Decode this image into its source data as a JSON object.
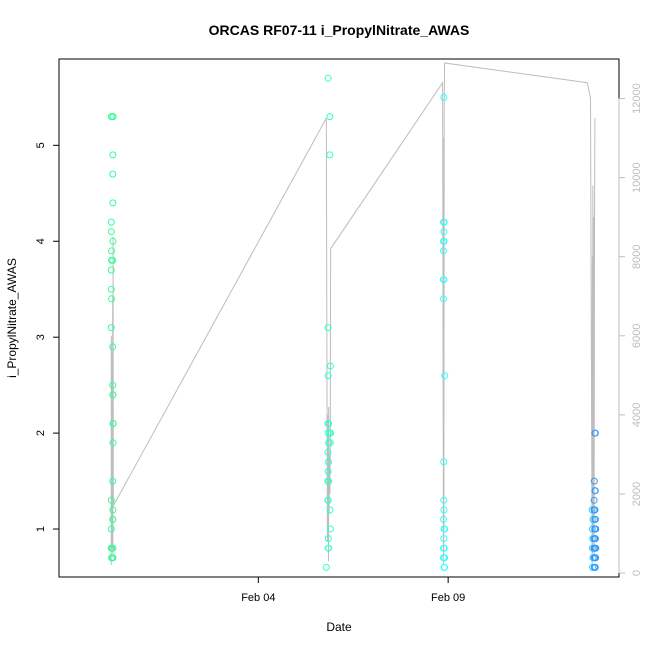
{
  "chart_data": {
    "type": "scatter",
    "title": "ORCAS RF07-11 i_PropylNitrate_AWAS",
    "xlabel": "Date",
    "ylabel": "i_PropylNitrate_AWAS",
    "x_ticks": [
      {
        "date": "2016-02-04",
        "label": "Feb 04"
      },
      {
        "date": "2016-02-09",
        "label": "Feb 09"
      }
    ],
    "y_ticks": [
      1,
      2,
      3,
      4,
      5
    ],
    "y2_ticks": [
      0,
      2000,
      4000,
      6000,
      8000,
      10000,
      12000
    ],
    "xlim": [
      "2016-01-29T18:00",
      "2016-02-13T12:00"
    ],
    "ylim": [
      0.5,
      5.9
    ],
    "y2lim": [
      -100,
      13000
    ],
    "grid": false,
    "colors": {
      "RF07": "#33ff99",
      "RF08": "#33ffcc",
      "RF09": "#33ffff",
      "RF10": "#33ccff",
      "RF11": "#3399ff",
      "altitude_line": "#bdbdbd"
    },
    "series": [
      {
        "flight": "RF07",
        "points": [
          {
            "x": "2016-01-31T03:05",
            "y": 5.3
          },
          {
            "x": "2016-01-31T03:05",
            "y": 4.2
          },
          {
            "x": "2016-01-31T03:05",
            "y": 4.1
          },
          {
            "x": "2016-01-31T03:10",
            "y": 3.9
          },
          {
            "x": "2016-01-31T03:10",
            "y": 3.8
          },
          {
            "x": "2016-01-31T03:00",
            "y": 3.7
          },
          {
            "x": "2016-01-31T03:05",
            "y": 3.5
          },
          {
            "x": "2016-01-31T03:10",
            "y": 3.4
          },
          {
            "x": "2016-01-31T03:05",
            "y": 3.1
          },
          {
            "x": "2016-01-31T03:05",
            "y": 1.3
          },
          {
            "x": "2016-01-31T03:05",
            "y": 1.0
          },
          {
            "x": "2016-01-31T03:00",
            "y": 0.8
          },
          {
            "x": "2016-01-31T03:20",
            "y": 0.8
          },
          {
            "x": "2016-01-31T03:15",
            "y": 0.7
          },
          {
            "x": "2016-01-31T03:20",
            "y": 0.7
          },
          {
            "x": "2016-01-31T04:00",
            "y": 5.3
          },
          {
            "x": "2016-01-31T04:10",
            "y": 5.3
          },
          {
            "x": "2016-01-31T04:00",
            "y": 4.9
          },
          {
            "x": "2016-01-31T04:00",
            "y": 4.7
          },
          {
            "x": "2016-01-31T04:00",
            "y": 4.4
          },
          {
            "x": "2016-01-31T04:10",
            "y": 4.0
          },
          {
            "x": "2016-01-31T04:00",
            "y": 3.8
          },
          {
            "x": "2016-01-31T03:55",
            "y": 2.9
          },
          {
            "x": "2016-01-31T03:55",
            "y": 2.5
          },
          {
            "x": "2016-01-31T04:05",
            "y": 2.4
          },
          {
            "x": "2016-01-31T04:00",
            "y": 2.4
          },
          {
            "x": "2016-01-31T04:10",
            "y": 2.1
          },
          {
            "x": "2016-01-31T04:15",
            "y": 2.1
          },
          {
            "x": "2016-01-31T04:10",
            "y": 1.9
          },
          {
            "x": "2016-01-31T03:55",
            "y": 1.5
          },
          {
            "x": "2016-01-31T04:05",
            "y": 1.2
          },
          {
            "x": "2016-01-31T03:55",
            "y": 1.1
          },
          {
            "x": "2016-01-31T04:00",
            "y": 1.1
          },
          {
            "x": "2016-01-31T04:05",
            "y": 0.8
          },
          {
            "x": "2016-01-31T03:55",
            "y": 0.7
          },
          {
            "x": "2016-01-31T04:10",
            "y": 0.7
          }
        ]
      },
      {
        "flight": "RF08",
        "points": [
          {
            "x": "2016-02-05T19:00",
            "y": 0.6
          },
          {
            "x": "2016-02-05T20:05",
            "y": 5.7
          },
          {
            "x": "2016-02-05T21:10",
            "y": 5.3
          },
          {
            "x": "2016-02-05T21:10",
            "y": 4.9
          },
          {
            "x": "2016-02-05T20:05",
            "y": 3.1
          },
          {
            "x": "2016-02-05T20:10",
            "y": 2.6
          },
          {
            "x": "2016-02-05T21:35",
            "y": 2.7
          },
          {
            "x": "2016-02-05T20:00",
            "y": 2.1
          },
          {
            "x": "2016-02-05T20:25",
            "y": 2.1
          },
          {
            "x": "2016-02-05T20:10",
            "y": 2.0
          },
          {
            "x": "2016-02-05T21:10",
            "y": 2.0
          },
          {
            "x": "2016-02-05T21:40",
            "y": 2.0
          },
          {
            "x": "2016-02-05T20:30",
            "y": 1.9
          },
          {
            "x": "2016-02-05T21:25",
            "y": 1.9
          },
          {
            "x": "2016-02-05T20:00",
            "y": 1.8
          },
          {
            "x": "2016-02-05T20:20",
            "y": 1.7
          },
          {
            "x": "2016-02-05T20:05",
            "y": 1.6
          },
          {
            "x": "2016-02-05T20:00",
            "y": 1.5
          },
          {
            "x": "2016-02-05T20:25",
            "y": 1.5
          },
          {
            "x": "2016-02-05T19:55",
            "y": 1.3
          },
          {
            "x": "2016-02-05T20:10",
            "y": 1.3
          },
          {
            "x": "2016-02-05T21:20",
            "y": 1.2
          },
          {
            "x": "2016-02-05T21:30",
            "y": 1.0
          },
          {
            "x": "2016-02-05T20:15",
            "y": 0.9
          },
          {
            "x": "2016-02-05T20:10",
            "y": 0.8
          },
          {
            "x": "2016-02-05T20:30",
            "y": 0.8
          }
        ]
      },
      {
        "flight": "RF09",
        "points": [
          {
            "x": "2016-02-08T21:15",
            "y": 5.5
          },
          {
            "x": "2016-02-08T21:05",
            "y": 4.2
          },
          {
            "x": "2016-02-08T21:25",
            "y": 4.2
          },
          {
            "x": "2016-02-08T21:20",
            "y": 4.1
          },
          {
            "x": "2016-02-08T21:00",
            "y": 4.0
          },
          {
            "x": "2016-02-08T21:25",
            "y": 4.0
          },
          {
            "x": "2016-02-08T21:05",
            "y": 3.9
          },
          {
            "x": "2016-02-08T21:00",
            "y": 3.6
          },
          {
            "x": "2016-02-08T21:20",
            "y": 3.6
          },
          {
            "x": "2016-02-08T21:05",
            "y": 3.4
          },
          {
            "x": "2016-02-08T21:50",
            "y": 2.6
          },
          {
            "x": "2016-02-08T21:10",
            "y": 1.7
          },
          {
            "x": "2016-02-08T21:10",
            "y": 1.3
          },
          {
            "x": "2016-02-08T21:20",
            "y": 1.2
          },
          {
            "x": "2016-02-08T21:05",
            "y": 1.1
          },
          {
            "x": "2016-02-08T21:25",
            "y": 1.0
          },
          {
            "x": "2016-02-08T21:50",
            "y": 1.0
          },
          {
            "x": "2016-02-08T21:15",
            "y": 0.9
          },
          {
            "x": "2016-02-08T21:05",
            "y": 0.8
          },
          {
            "x": "2016-02-08T21:30",
            "y": 0.8
          },
          {
            "x": "2016-02-08T21:00",
            "y": 0.7
          },
          {
            "x": "2016-02-08T21:15",
            "y": 0.7
          },
          {
            "x": "2016-02-08T21:30",
            "y": 0.7
          },
          {
            "x": "2016-02-08T21:45",
            "y": 0.7
          },
          {
            "x": "2016-02-08T21:25",
            "y": 0.6
          },
          {
            "x": "2016-02-08T21:40",
            "y": 0.6
          }
        ]
      },
      {
        "flight": "RF10",
        "points": [
          {
            "x": "2016-02-12T19:00",
            "y": 1.2
          },
          {
            "x": "2016-02-12T19:30",
            "y": 1.1
          },
          {
            "x": "2016-02-12T19:10",
            "y": 1.0
          },
          {
            "x": "2016-02-12T19:25",
            "y": 0.9
          },
          {
            "x": "2016-02-12T19:15",
            "y": 0.8
          },
          {
            "x": "2016-02-12T19:30",
            "y": 0.7
          },
          {
            "x": "2016-02-12T19:20",
            "y": 0.6
          }
        ]
      },
      {
        "flight": "RF11",
        "points": [
          {
            "x": "2016-02-12T20:45",
            "y": 2.0
          },
          {
            "x": "2016-02-12T21:00",
            "y": 2.0
          },
          {
            "x": "2016-02-12T20:25",
            "y": 1.5
          },
          {
            "x": "2016-02-12T20:45",
            "y": 1.4
          },
          {
            "x": "2016-02-12T21:00",
            "y": 1.4
          },
          {
            "x": "2016-02-12T20:15",
            "y": 1.3
          },
          {
            "x": "2016-02-12T20:10",
            "y": 1.2
          },
          {
            "x": "2016-02-12T20:30",
            "y": 1.2
          },
          {
            "x": "2016-02-12T20:50",
            "y": 1.2
          },
          {
            "x": "2016-02-12T20:40",
            "y": 1.1
          },
          {
            "x": "2016-02-12T21:10",
            "y": 1.1
          },
          {
            "x": "2016-02-12T20:35",
            "y": 1.0
          },
          {
            "x": "2016-02-12T21:00",
            "y": 1.0
          },
          {
            "x": "2016-02-12T21:15",
            "y": 1.0
          },
          {
            "x": "2016-02-12T20:20",
            "y": 0.9
          },
          {
            "x": "2016-02-12T20:50",
            "y": 0.9
          },
          {
            "x": "2016-02-12T21:05",
            "y": 0.9
          },
          {
            "x": "2016-02-12T20:10",
            "y": 0.8
          },
          {
            "x": "2016-02-12T20:30",
            "y": 0.8
          },
          {
            "x": "2016-02-12T20:45",
            "y": 0.8
          },
          {
            "x": "2016-02-12T21:00",
            "y": 0.8
          },
          {
            "x": "2016-02-12T21:20",
            "y": 0.8
          },
          {
            "x": "2016-02-12T20:20",
            "y": 0.7
          },
          {
            "x": "2016-02-12T20:40",
            "y": 0.7
          },
          {
            "x": "2016-02-12T20:55",
            "y": 0.7
          },
          {
            "x": "2016-02-12T21:15",
            "y": 0.7
          },
          {
            "x": "2016-02-12T20:25",
            "y": 0.6
          },
          {
            "x": "2016-02-12T20:45",
            "y": 0.6
          },
          {
            "x": "2016-02-12T21:00",
            "y": 0.6
          }
        ]
      }
    ],
    "altitude_line": [
      {
        "x": "2016-01-31T03:00",
        "y2": 200
      },
      {
        "x": "2016-01-31T03:05",
        "y2": 6000
      },
      {
        "x": "2016-01-31T03:15",
        "y2": 5500
      },
      {
        "x": "2016-01-31T03:25",
        "y2": 600
      },
      {
        "x": "2016-01-31T03:35",
        "y2": 4500
      },
      {
        "x": "2016-01-31T03:45",
        "y2": 1200
      },
      {
        "x": "2016-01-31T03:55",
        "y2": 7000
      },
      {
        "x": "2016-01-31T04:05",
        "y2": 400
      },
      {
        "x": "2016-01-31T04:12",
        "y2": 8500
      },
      {
        "x": "2016-01-31T04:20",
        "y2": 1700
      },
      {
        "x": "2016-02-05T19:00",
        "y2": 11500
      },
      {
        "x": "2016-02-05T19:40",
        "y2": 800
      },
      {
        "x": "2016-02-05T19:50",
        "y2": 4000
      },
      {
        "x": "2016-02-05T20:00",
        "y2": 1000
      },
      {
        "x": "2016-02-05T20:10",
        "y2": 3800
      },
      {
        "x": "2016-02-05T20:20",
        "y2": 300
      },
      {
        "x": "2016-02-05T20:30",
        "y2": 4200
      },
      {
        "x": "2016-02-05T20:45",
        "y2": 1500
      },
      {
        "x": "2016-02-05T21:00",
        "y2": 3000
      },
      {
        "x": "2016-02-05T21:15",
        "y2": 2000
      },
      {
        "x": "2016-02-05T21:30",
        "y2": 3300
      },
      {
        "x": "2016-02-05T21:40",
        "y2": 8200
      },
      {
        "x": "2016-02-08T20:30",
        "y2": 12400
      },
      {
        "x": "2016-02-08T20:50",
        "y2": 5000
      },
      {
        "x": "2016-02-08T21:00",
        "y2": 200
      },
      {
        "x": "2016-02-08T21:05",
        "y2": 9000
      },
      {
        "x": "2016-02-08T21:10",
        "y2": 500
      },
      {
        "x": "2016-02-08T21:15",
        "y2": 11000
      },
      {
        "x": "2016-02-08T21:20",
        "y2": 1000
      },
      {
        "x": "2016-02-08T21:30",
        "y2": 11800
      },
      {
        "x": "2016-02-08T21:45",
        "y2": 12900
      },
      {
        "x": "2016-02-12T16:00",
        "y2": 12400
      },
      {
        "x": "2016-02-12T18:00",
        "y2": 12000
      },
      {
        "x": "2016-02-12T19:00",
        "y2": 200
      },
      {
        "x": "2016-02-12T19:10",
        "y2": 8000
      },
      {
        "x": "2016-02-12T19:20",
        "y2": 500
      },
      {
        "x": "2016-02-12T19:30",
        "y2": 9800
      },
      {
        "x": "2016-02-12T19:45",
        "y2": 1000
      },
      {
        "x": "2016-02-12T20:00",
        "y2": 9000
      },
      {
        "x": "2016-02-12T20:15",
        "y2": 400
      },
      {
        "x": "2016-02-12T20:30",
        "y2": 8500
      },
      {
        "x": "2016-02-12T20:45",
        "y2": 11500
      }
    ]
  }
}
